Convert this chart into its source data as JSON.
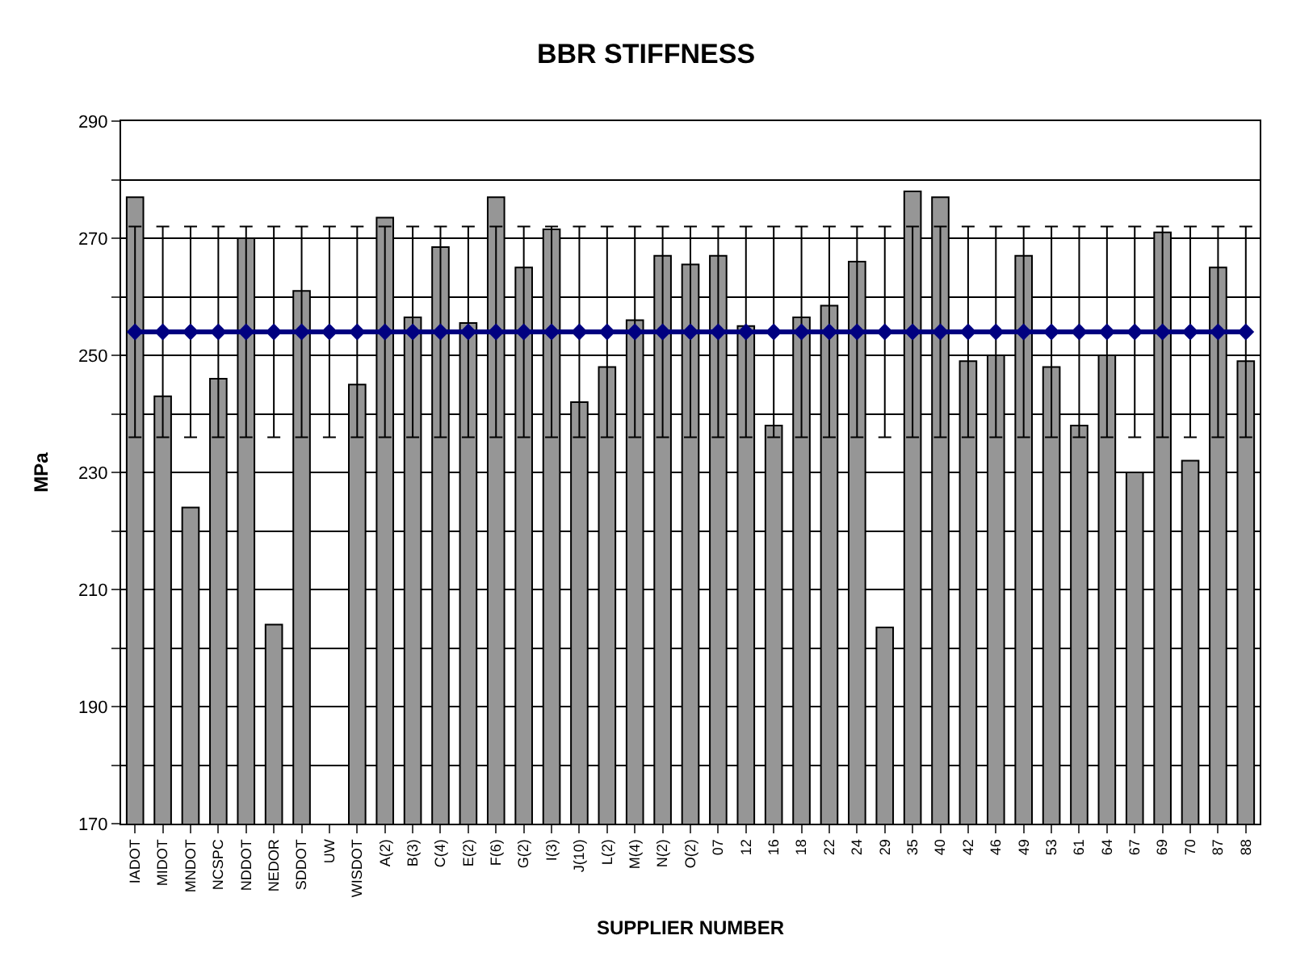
{
  "chart_data": {
    "type": "bar",
    "title": "BBR STIFFNESS",
    "xlabel": "SUPPLIER NUMBER",
    "ylabel": "MPa",
    "categories": [
      "IADOT",
      "MIDOT",
      "MNDOT",
      "NCSPC",
      "NDDOT",
      "NEDOR",
      "SDDOT",
      "UW",
      "WISDOT",
      "A(2)",
      "B(3)",
      "C(4)",
      "E(2)",
      "F(6)",
      "G(2)",
      "I(3)",
      "J(10)",
      "L(2)",
      "M(4)",
      "N(2)",
      "O(2)",
      "07",
      "12",
      "16",
      "18",
      "22",
      "24",
      "29",
      "35",
      "40",
      "42",
      "46",
      "49",
      "53",
      "61",
      "64",
      "67",
      "69",
      "70",
      "87",
      "88"
    ],
    "series": [
      {
        "color": "#969696",
        "values": [
          277,
          243,
          224,
          246,
          270,
          204,
          261,
          null,
          245,
          273.5,
          256.5,
          268.5,
          255.5,
          277,
          265,
          271.5,
          242,
          248,
          256,
          267,
          265.5,
          267,
          255,
          238,
          256.5,
          258.5,
          266,
          203.5,
          278,
          277,
          249,
          250,
          267,
          248,
          238,
          250,
          230,
          271,
          232,
          265,
          249
        ]
      },
      {
        "type": "line",
        "color": "#000080",
        "marker": "diamond",
        "values": [
          254,
          254,
          254,
          254,
          254,
          254,
          254,
          254,
          254,
          254,
          254,
          254,
          254,
          254,
          254,
          254,
          254,
          254,
          254,
          254,
          254,
          254,
          254,
          254,
          254,
          254,
          254,
          254,
          254,
          254,
          254,
          254,
          254,
          254,
          254,
          254,
          254,
          254,
          254,
          254,
          254
        ],
        "errors": [
          18,
          18,
          18,
          18,
          18,
          18,
          18,
          18,
          18,
          18,
          18,
          18,
          18,
          18,
          18,
          18,
          18,
          18,
          18,
          18,
          18,
          18,
          18,
          18,
          18,
          18,
          18,
          18,
          18,
          18,
          18,
          18,
          18,
          18,
          18,
          18,
          18,
          18,
          18,
          18,
          18
        ]
      }
    ],
    "ylim": [
      170,
      290
    ],
    "yticks": [
      170,
      {
        "value": 180,
        "label": null
      },
      190,
      {
        "value": 200,
        "label": null
      },
      210,
      {
        "value": 220,
        "label": null
      },
      230,
      {
        "value": 240,
        "label": null
      },
      250,
      {
        "value": 260,
        "label": null
      },
      270,
      {
        "value": 280,
        "label": null
      },
      290
    ],
    "grid": "y"
  }
}
